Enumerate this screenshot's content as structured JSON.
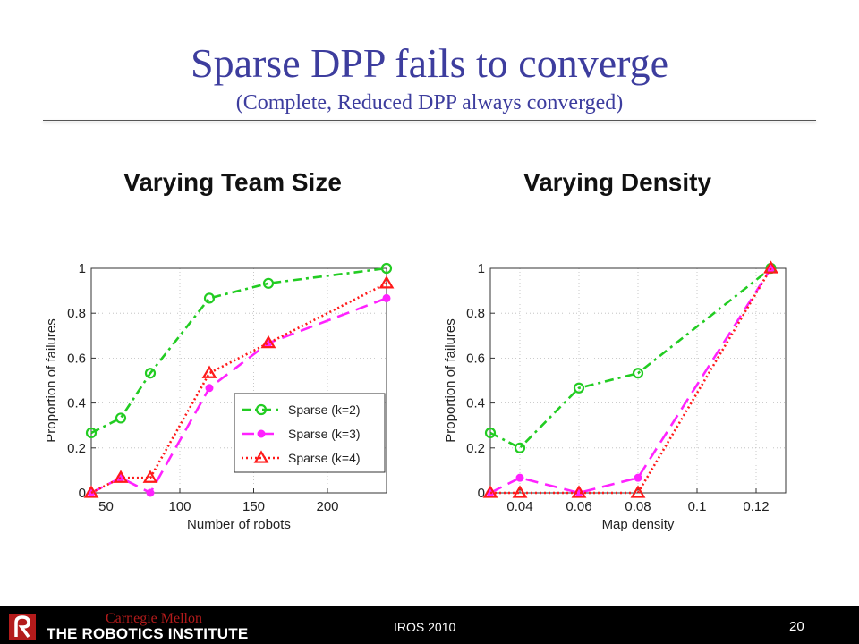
{
  "slide": {
    "title": "Sparse DPP fails to converge",
    "subtitle": "(Complete, Reduced DPP always converged)",
    "footer": {
      "institution_top": "Carnegie Mellon",
      "institution": "THE ROBOTICS INSTITUTE",
      "conference": "IROS 2010",
      "page": "20"
    }
  },
  "colors": {
    "title": "#3d3d9e",
    "sparse_k2": "#22cc22",
    "sparse_k3": "#ff22ff",
    "sparse_k4": "#ff1a1a"
  },
  "chart_data": [
    {
      "type": "line",
      "title": "Varying Team Size",
      "xlabel": "Number of robots",
      "ylabel": "Proportion of failures",
      "xlim": [
        40,
        240
      ],
      "ylim": [
        0,
        1
      ],
      "xticks": [
        50,
        100,
        150,
        200
      ],
      "xtick_labels": [
        "50",
        "100",
        "150",
        "200"
      ],
      "yticks": [
        0,
        0.2,
        0.4,
        0.6,
        0.8,
        1
      ],
      "ytick_labels": [
        "0",
        "0.2",
        "0.4",
        "0.6",
        "0.8",
        "1"
      ],
      "grid": true,
      "legend": "lower-right",
      "series": [
        {
          "name": "Sparse (k=2)",
          "x": [
            40,
            60,
            80,
            120,
            160,
            240
          ],
          "y": [
            0.267,
            0.333,
            0.533,
            0.867,
            0.933,
            1.0
          ]
        },
        {
          "name": "Sparse (k=3)",
          "x": [
            40,
            60,
            80,
            120,
            160,
            240
          ],
          "y": [
            0.0,
            0.067,
            0.0,
            0.467,
            0.667,
            0.867
          ]
        },
        {
          "name": "Sparse (k=4)",
          "x": [
            40,
            60,
            80,
            120,
            160,
            240
          ],
          "y": [
            0.0,
            0.067,
            0.067,
            0.533,
            0.667,
            0.933
          ]
        }
      ]
    },
    {
      "type": "line",
      "title": "Varying Density",
      "xlabel": "Map density",
      "ylabel": "Proportion of failures",
      "xlim": [
        0.03,
        0.13
      ],
      "ylim": [
        0,
        1
      ],
      "xticks": [
        0.04,
        0.06,
        0.08,
        0.1,
        0.12
      ],
      "xtick_labels": [
        "0.04",
        "0.06",
        "0.08",
        "0.1",
        "0.12"
      ],
      "yticks": [
        0,
        0.2,
        0.4,
        0.6,
        0.8,
        1
      ],
      "ytick_labels": [
        "0",
        "0.2",
        "0.4",
        "0.6",
        "0.8",
        "1"
      ],
      "grid": true,
      "legend": "none",
      "series": [
        {
          "name": "Sparse (k=2)",
          "x": [
            0.03,
            0.04,
            0.06,
            0.08,
            0.125
          ],
          "y": [
            0.267,
            0.2,
            0.467,
            0.533,
            1.0
          ]
        },
        {
          "name": "Sparse (k=3)",
          "x": [
            0.03,
            0.04,
            0.06,
            0.08,
            0.125
          ],
          "y": [
            0.0,
            0.067,
            0.0,
            0.067,
            1.0
          ]
        },
        {
          "name": "Sparse (k=4)",
          "x": [
            0.03,
            0.04,
            0.06,
            0.08,
            0.125
          ],
          "y": [
            0.0,
            0.0,
            0.0,
            0.0,
            1.0
          ]
        }
      ]
    }
  ]
}
